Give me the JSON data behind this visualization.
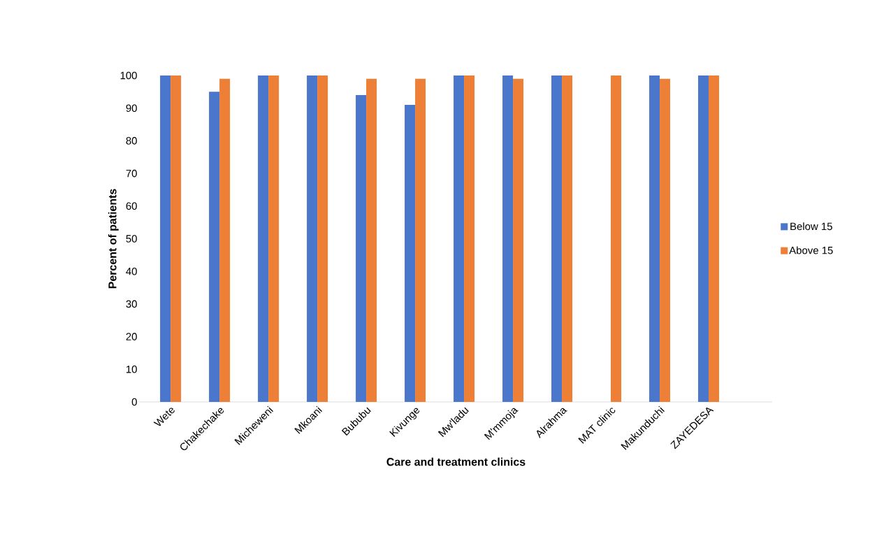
{
  "chart_data": {
    "type": "bar",
    "xlabel": "Care and treatment clinics",
    "ylabel": "Percent of patients",
    "categories": [
      "Wete",
      "Chakechake",
      "Micheweni",
      "Mkoani",
      "Bububu",
      "Kivunge",
      "Mw'ladu",
      "M'mmoja",
      "Alrahma",
      "MAT  clinic",
      "Makunduchi",
      "ZAYEDESA"
    ],
    "series": [
      {
        "name": "Below 15",
        "color": "#4a76cc",
        "values": [
          100,
          95,
          100,
          100,
          94,
          91,
          100,
          100,
          100,
          null,
          100,
          100
        ]
      },
      {
        "name": "Above 15",
        "color": "#ee7f36",
        "values": [
          100,
          99,
          100,
          100,
          99,
          99,
          100,
          99,
          100,
          100,
          99,
          100
        ]
      }
    ],
    "ylim": [
      0,
      100
    ],
    "yticks": [
      0,
      10,
      20,
      30,
      40,
      50,
      60,
      70,
      80,
      90,
      100
    ],
    "legend": "right"
  }
}
